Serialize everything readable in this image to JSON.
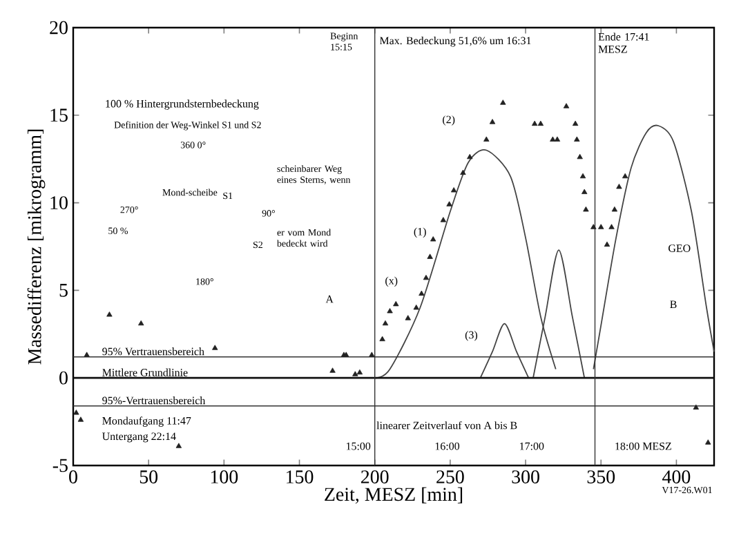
{
  "chart_data": {
    "type": "scatter",
    "xlabel": "Zeit, MESZ [min]",
    "ylabel": "Massedifferenz [mikrogramm]",
    "xlim": [
      0,
      425
    ],
    "ylim": [
      -5,
      20
    ],
    "xticks": [
      0,
      50,
      100,
      150,
      200,
      250,
      300,
      350,
      400
    ],
    "yticks": [
      -5,
      0,
      5,
      10,
      15,
      20
    ],
    "series": [
      {
        "marker": "triangle",
        "color": "#222222",
        "x": [
          2,
          5,
          9,
          24,
          45,
          70,
          94,
          172,
          179.5,
          181,
          187,
          190,
          198,
          205,
          207,
          210,
          214,
          222,
          227.5,
          231,
          234,
          236.6,
          238.7,
          245.4,
          249.4,
          252.4,
          258.5,
          263,
          274,
          278,
          285,
          306,
          310,
          318,
          321,
          327,
          333,
          334,
          336,
          338,
          339,
          340,
          345,
          350,
          354,
          357,
          359,
          362,
          366,
          413,
          421
        ],
        "values": [
          -2,
          -2.4,
          1.3,
          3.6,
          3.1,
          -3.9,
          1.7,
          0.4,
          1.3,
          1.3,
          0.2,
          0.3,
          1.3,
          2.2,
          3.1,
          3.8,
          4.2,
          3.4,
          4.0,
          4.8,
          5.7,
          6.9,
          7.9,
          9.0,
          9.9,
          10.7,
          11.7,
          12.6,
          13.6,
          14.6,
          15.7,
          14.5,
          14.5,
          13.6,
          13.6,
          15.5,
          14.5,
          13.6,
          12.6,
          11.5,
          10.6,
          9.6,
          8.6,
          8.6,
          7.6,
          8.6,
          9.6,
          10.9,
          11.5,
          -1.7,
          -3.7
        ]
      },
      {
        "type": "line",
        "color": "#444444",
        "x": [
          200,
          210,
          230,
          250,
          262,
          274,
          290,
          300,
          310,
          320
        ],
        "values": [
          0,
          0.5,
          4,
          9.5,
          12.3,
          13.0,
          11.5,
          8,
          3.5,
          0.5
        ]
      },
      {
        "type": "line",
        "color": "#444444",
        "x": [
          270,
          278,
          286,
          294,
          302
        ],
        "values": [
          0,
          1.5,
          3.1,
          1.5,
          0
        ]
      },
      {
        "type": "line",
        "color": "#444444",
        "x": [
          305,
          313,
          322,
          331,
          339
        ],
        "values": [
          0,
          3.5,
          7.3,
          3.5,
          0
        ]
      },
      {
        "type": "line",
        "color": "#444444",
        "x": [
          345,
          350,
          360,
          370,
          380,
          388,
          398,
          410,
          420,
          425
        ],
        "values": [
          0.5,
          3,
          8,
          12,
          14,
          14.4,
          13.5,
          9.5,
          4,
          1.5
        ]
      }
    ],
    "ref_lines": [
      {
        "axis": "y",
        "value": 1.2,
        "label": "95% Vertrauensbereich",
        "color": "#333333"
      },
      {
        "axis": "y",
        "value": 0,
        "label": "Mittlere Grundlinie",
        "color": "#111111"
      },
      {
        "axis": "y",
        "value": -1.6,
        "label": "95%-Vertrauensbereich",
        "color": "#333333"
      },
      {
        "axis": "x",
        "value": 200,
        "color": "#333333"
      },
      {
        "axis": "x",
        "value": 346,
        "color": "#333333"
      }
    ],
    "annotations": [
      "100 % Hintergrundsternbedeckung",
      "Definition der Weg-Winkel S1 und S2",
      "360 0°",
      "270°",
      "90°",
      "180°",
      "50 %",
      "Mond-scheibe",
      "S1",
      "S2",
      "scheinbarer Weg eines Sterns, wenn",
      "er vom Mond bedeckt wird",
      "Mondaufgang 11:47",
      "Untergang 22:14",
      "Max. Bedeckung 51,6% um 16:31",
      "(x)",
      "(1)",
      "(2)",
      "(3)",
      "A",
      "B",
      "GEO",
      "linearer Zeitverlauf von A bis B",
      "15:00",
      "16:00",
      "17:00",
      "18:00 MESZ",
      "V17-26.W01",
      "Beginn 15:15",
      "Ende 17:41 MESZ"
    ]
  }
}
